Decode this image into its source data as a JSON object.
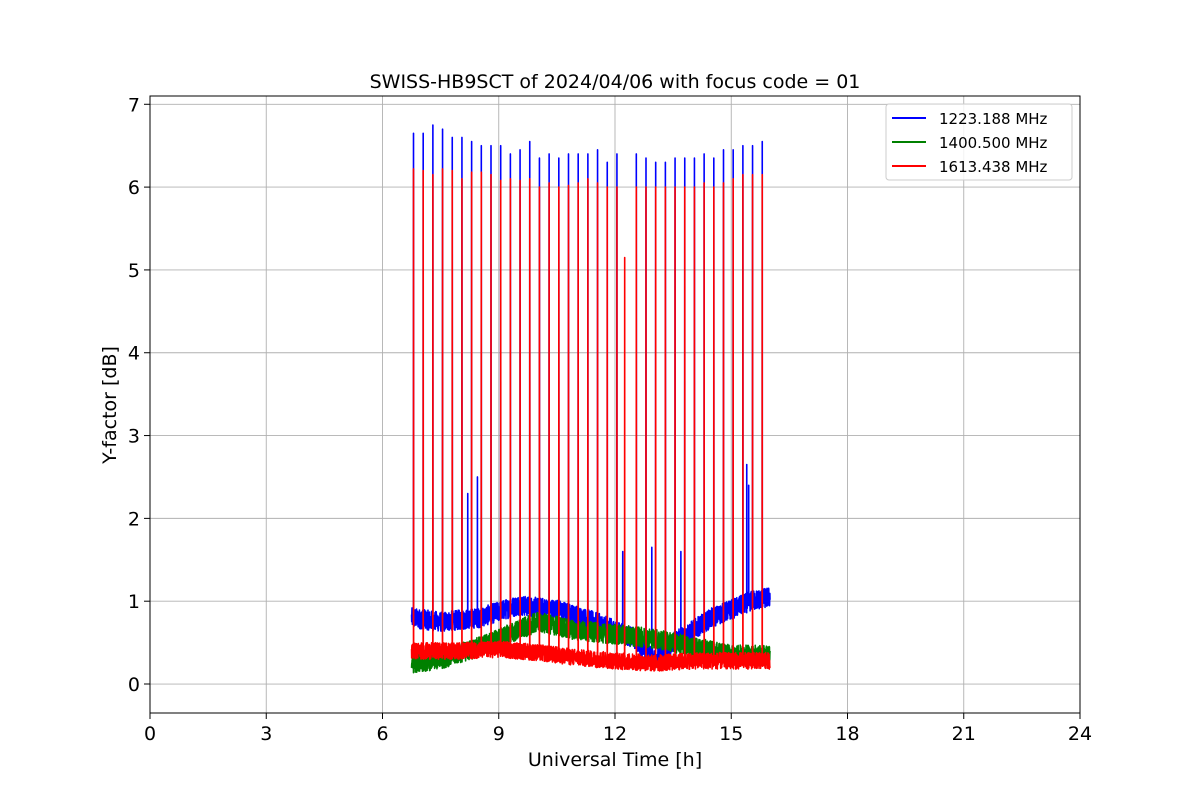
{
  "chart_data": {
    "type": "line",
    "title": "SWISS-HB9SCT of 2024/04/06 with focus code = 01",
    "xlabel": "Universal Time [h]",
    "ylabel": "Y-factor [dB]",
    "xlim": [
      0,
      24
    ],
    "ylim": [
      -0.35,
      7.1
    ],
    "xticks": [
      0,
      3,
      6,
      9,
      12,
      15,
      18,
      21,
      24
    ],
    "yticks": [
      0,
      1,
      2,
      3,
      4,
      5,
      6,
      7
    ],
    "grid": true,
    "legend_position": "top-right",
    "data_start": 6.75,
    "data_end": 16.0,
    "series": [
      {
        "name": "1223.188 MHz",
        "color": "#0000ff",
        "baseline": [
          [
            6.75,
            0.8
          ],
          [
            7.5,
            0.75
          ],
          [
            8.5,
            0.8
          ],
          [
            9.5,
            0.95
          ],
          [
            10.5,
            0.9
          ],
          [
            11.5,
            0.75
          ],
          [
            12.5,
            0.55
          ],
          [
            13.0,
            0.3
          ],
          [
            13.5,
            0.5
          ],
          [
            14.5,
            0.8
          ],
          [
            15.5,
            1.0
          ],
          [
            16.0,
            1.05
          ]
        ],
        "noise": 0.12,
        "spike_times": [
          6.8,
          7.05,
          7.3,
          7.55,
          7.8,
          8.05,
          8.3,
          8.55,
          8.8,
          9.05,
          9.3,
          9.55,
          9.8,
          10.05,
          10.3,
          10.55,
          10.8,
          11.05,
          11.3,
          11.55,
          11.8,
          12.05,
          12.55,
          12.8,
          13.05,
          13.3,
          13.55,
          13.8,
          14.05,
          14.3,
          14.55,
          14.8,
          15.05,
          15.3,
          15.55,
          15.8
        ],
        "spike_peaks": [
          6.65,
          6.65,
          6.75,
          6.7,
          6.6,
          6.6,
          6.55,
          6.5,
          6.5,
          6.5,
          6.4,
          6.45,
          6.55,
          6.35,
          6.4,
          6.35,
          6.4,
          6.4,
          6.4,
          6.45,
          6.3,
          6.4,
          6.4,
          6.35,
          6.3,
          6.3,
          6.35,
          6.35,
          6.35,
          6.4,
          6.35,
          6.45,
          6.45,
          6.5,
          6.5,
          6.55
        ],
        "extra_peaks": [
          [
            8.2,
            2.3
          ],
          [
            8.45,
            2.5
          ],
          [
            12.2,
            1.6
          ],
          [
            12.95,
            1.65
          ],
          [
            13.7,
            1.6
          ],
          [
            15.45,
            2.4
          ],
          [
            15.4,
            2.65
          ]
        ]
      },
      {
        "name": "1400.500 MHz",
        "color": "#008000",
        "baseline": [
          [
            6.75,
            0.25
          ],
          [
            7.5,
            0.3
          ],
          [
            8.5,
            0.45
          ],
          [
            9.5,
            0.65
          ],
          [
            10.0,
            0.75
          ],
          [
            11.0,
            0.65
          ],
          [
            12.0,
            0.6
          ],
          [
            13.0,
            0.55
          ],
          [
            14.0,
            0.45
          ],
          [
            15.0,
            0.35
          ],
          [
            16.0,
            0.35
          ]
        ],
        "noise": 0.12,
        "spike_times": [],
        "spike_peaks": [],
        "extra_peaks": []
      },
      {
        "name": "1613.438 MHz",
        "color": "#ff0000",
        "baseline": [
          [
            6.75,
            0.4
          ],
          [
            8.0,
            0.4
          ],
          [
            9.0,
            0.42
          ],
          [
            10.0,
            0.38
          ],
          [
            11.0,
            0.32
          ],
          [
            12.0,
            0.28
          ],
          [
            13.0,
            0.25
          ],
          [
            14.0,
            0.28
          ],
          [
            15.0,
            0.28
          ],
          [
            16.0,
            0.28
          ]
        ],
        "noise": 0.1,
        "spike_times": [
          6.8,
          7.05,
          7.3,
          7.55,
          7.8,
          8.05,
          8.3,
          8.55,
          8.8,
          9.05,
          9.3,
          9.55,
          9.8,
          10.05,
          10.3,
          10.55,
          10.8,
          11.05,
          11.3,
          11.55,
          11.8,
          12.05,
          12.55,
          12.8,
          13.05,
          13.3,
          13.55,
          13.8,
          14.05,
          14.3,
          14.55,
          14.8,
          15.05,
          15.3,
          15.55,
          15.8
        ],
        "spike_peaks": [
          6.22,
          6.2,
          6.15,
          6.22,
          6.2,
          6.1,
          6.18,
          6.18,
          6.15,
          6.08,
          6.1,
          6.08,
          6.1,
          6.0,
          6.05,
          6.0,
          6.02,
          6.05,
          6.1,
          6.05,
          6.0,
          6.0,
          6.0,
          6.0,
          6.0,
          6.0,
          6.0,
          6.0,
          6.0,
          6.05,
          6.0,
          6.05,
          6.1,
          6.15,
          6.15,
          6.15
        ],
        "extra_peaks": [
          [
            12.25,
            5.15
          ]
        ]
      }
    ]
  }
}
